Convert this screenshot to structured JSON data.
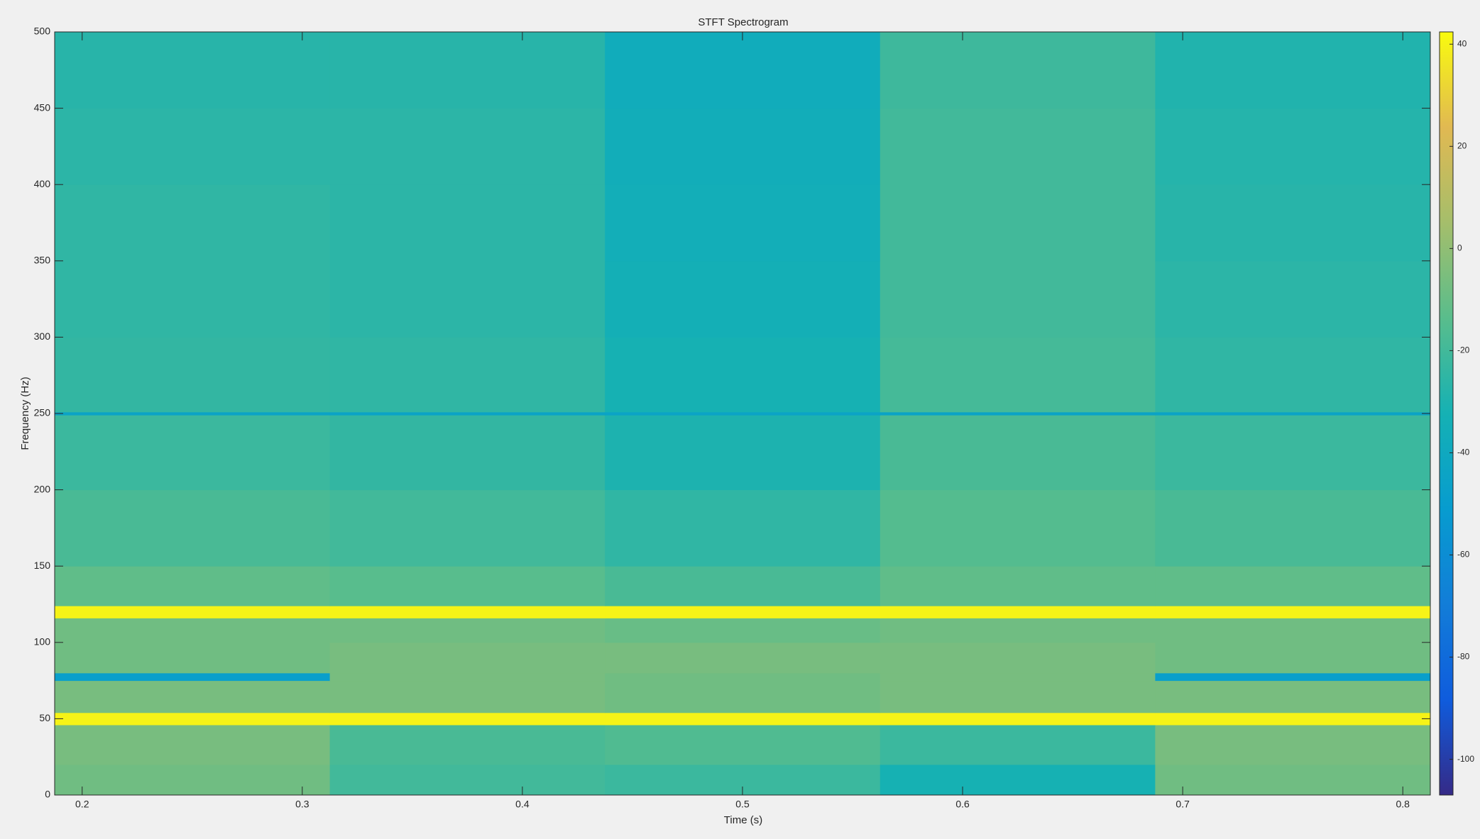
{
  "chart_data": {
    "type": "spectrogram",
    "title": "STFT Spectrogram",
    "xlabel": "Time (s)",
    "ylabel": "Frequency (Hz)",
    "x_edges": [
      0.1875,
      0.3125,
      0.4375,
      0.5625,
      0.6875,
      0.8125
    ],
    "y_edges": [
      0,
      20,
      46,
      54,
      75,
      80,
      100,
      116,
      124,
      150,
      200,
      249,
      251,
      300,
      350,
      400,
      450,
      500
    ],
    "values": [
      [
        -8,
        -20,
        -22,
        -32,
        -8
      ],
      [
        -6,
        -18,
        -16,
        -22,
        -6
      ],
      [
        40,
        40,
        40,
        40,
        40
      ],
      [
        -6,
        -6,
        -8,
        -6,
        -6
      ],
      [
        -48,
        -6,
        -8,
        -6,
        -48
      ],
      [
        -8,
        -6,
        -6,
        -6,
        -8
      ],
      [
        -8,
        -8,
        -10,
        -8,
        -8
      ],
      [
        40,
        40,
        40,
        40,
        40
      ],
      [
        -12,
        -14,
        -18,
        -12,
        -12
      ],
      [
        -18,
        -20,
        -25,
        -15,
        -18
      ],
      [
        -22,
        -24,
        -30,
        -18,
        -22
      ],
      [
        -45,
        -45,
        -45,
        -45,
        -45
      ],
      [
        -24,
        -25,
        -32,
        -19,
        -25
      ],
      [
        -25,
        -26,
        -34,
        -20,
        -26
      ],
      [
        -25,
        -26,
        -35,
        -20,
        -27
      ],
      [
        -26,
        -26,
        -36,
        -20,
        -28
      ],
      [
        -27,
        -27,
        -37,
        -21,
        -29
      ]
    ],
    "xlim": [
      0.1875,
      0.8125
    ],
    "xticks": [
      0.2,
      0.3,
      0.4,
      0.5,
      0.6,
      0.7,
      0.8
    ],
    "ylim": [
      0,
      500
    ],
    "yticks": [
      0,
      50,
      100,
      150,
      200,
      250,
      300,
      350,
      400,
      450,
      500
    ],
    "colormap": "parula",
    "clim": [
      -107,
      42.4
    ],
    "cticks": [
      -100,
      -80,
      -60,
      -40,
      -20,
      0,
      20,
      40
    ]
  }
}
